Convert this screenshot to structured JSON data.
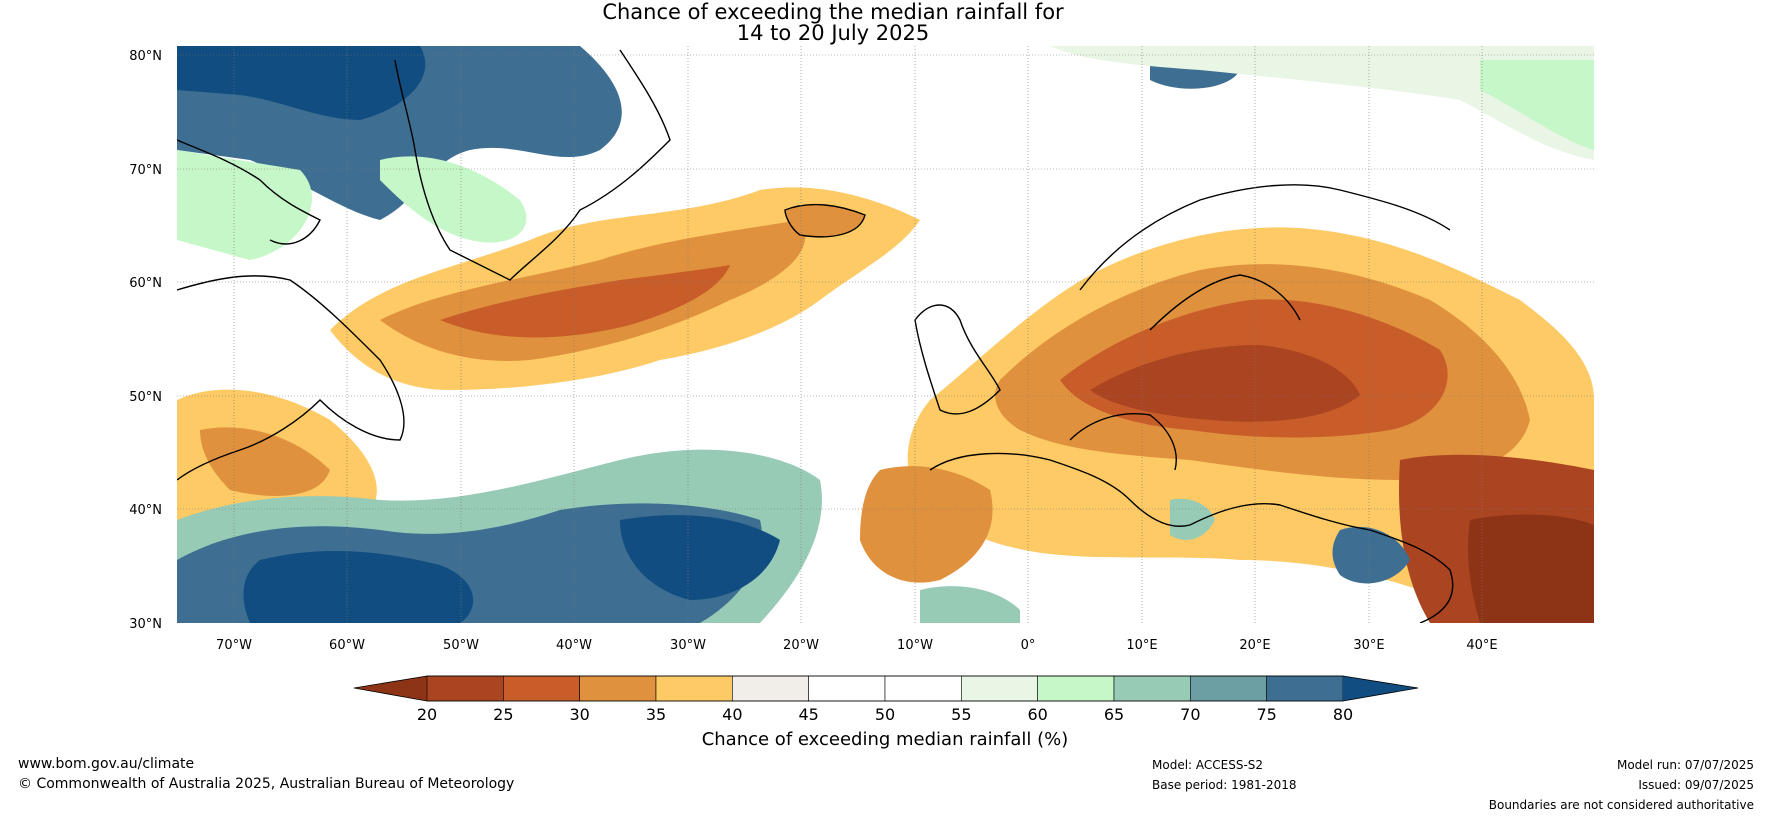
{
  "title": {
    "line1": "Chance of exceeding the median rainfall for",
    "line2": "14 to 20 July 2025"
  },
  "map": {
    "lat_labels": [
      "80°N",
      "70°N",
      "60°N",
      "50°N",
      "40°N",
      "30°N"
    ],
    "lon_labels": [
      "70°W",
      "60°W",
      "50°W",
      "40°W",
      "30°W",
      "20°W",
      "10°W",
      "0°",
      "10°E",
      "20°E",
      "30°E",
      "40°E"
    ],
    "extent": {
      "lon_min": -75,
      "lon_max": 50,
      "lat_min": 30,
      "lat_max": 81
    }
  },
  "colorbar": {
    "label": "Chance of exceeding median rainfall (%)",
    "ticks": [
      "20",
      "25",
      "30",
      "35",
      "40",
      "45",
      "50",
      "55",
      "60",
      "65",
      "70",
      "75",
      "80"
    ],
    "under_color": "#8e3416",
    "over_color": "#114d80",
    "colors": [
      "#ab4420",
      "#c85d2a",
      "#e0913d",
      "#fdca65",
      "#f1ede8",
      "#ffffff",
      "#ffffff",
      "#e9f6e6",
      "#c6f7c8",
      "#98cbb6",
      "#6b9fa3",
      "#3e6f92"
    ]
  },
  "footer": {
    "website": "www.bom.gov.au/climate",
    "copyright": "© Commonwealth of Australia 2025, Australian Bureau of Meteorology",
    "model": "Model: ACCESS-S2",
    "base_period": "Base period: 1981-2018",
    "model_run": "Model run: 07/07/2025",
    "issued": "Issued: 09/07/2025",
    "disclaimer": "Boundaries are not considered authoritative"
  }
}
